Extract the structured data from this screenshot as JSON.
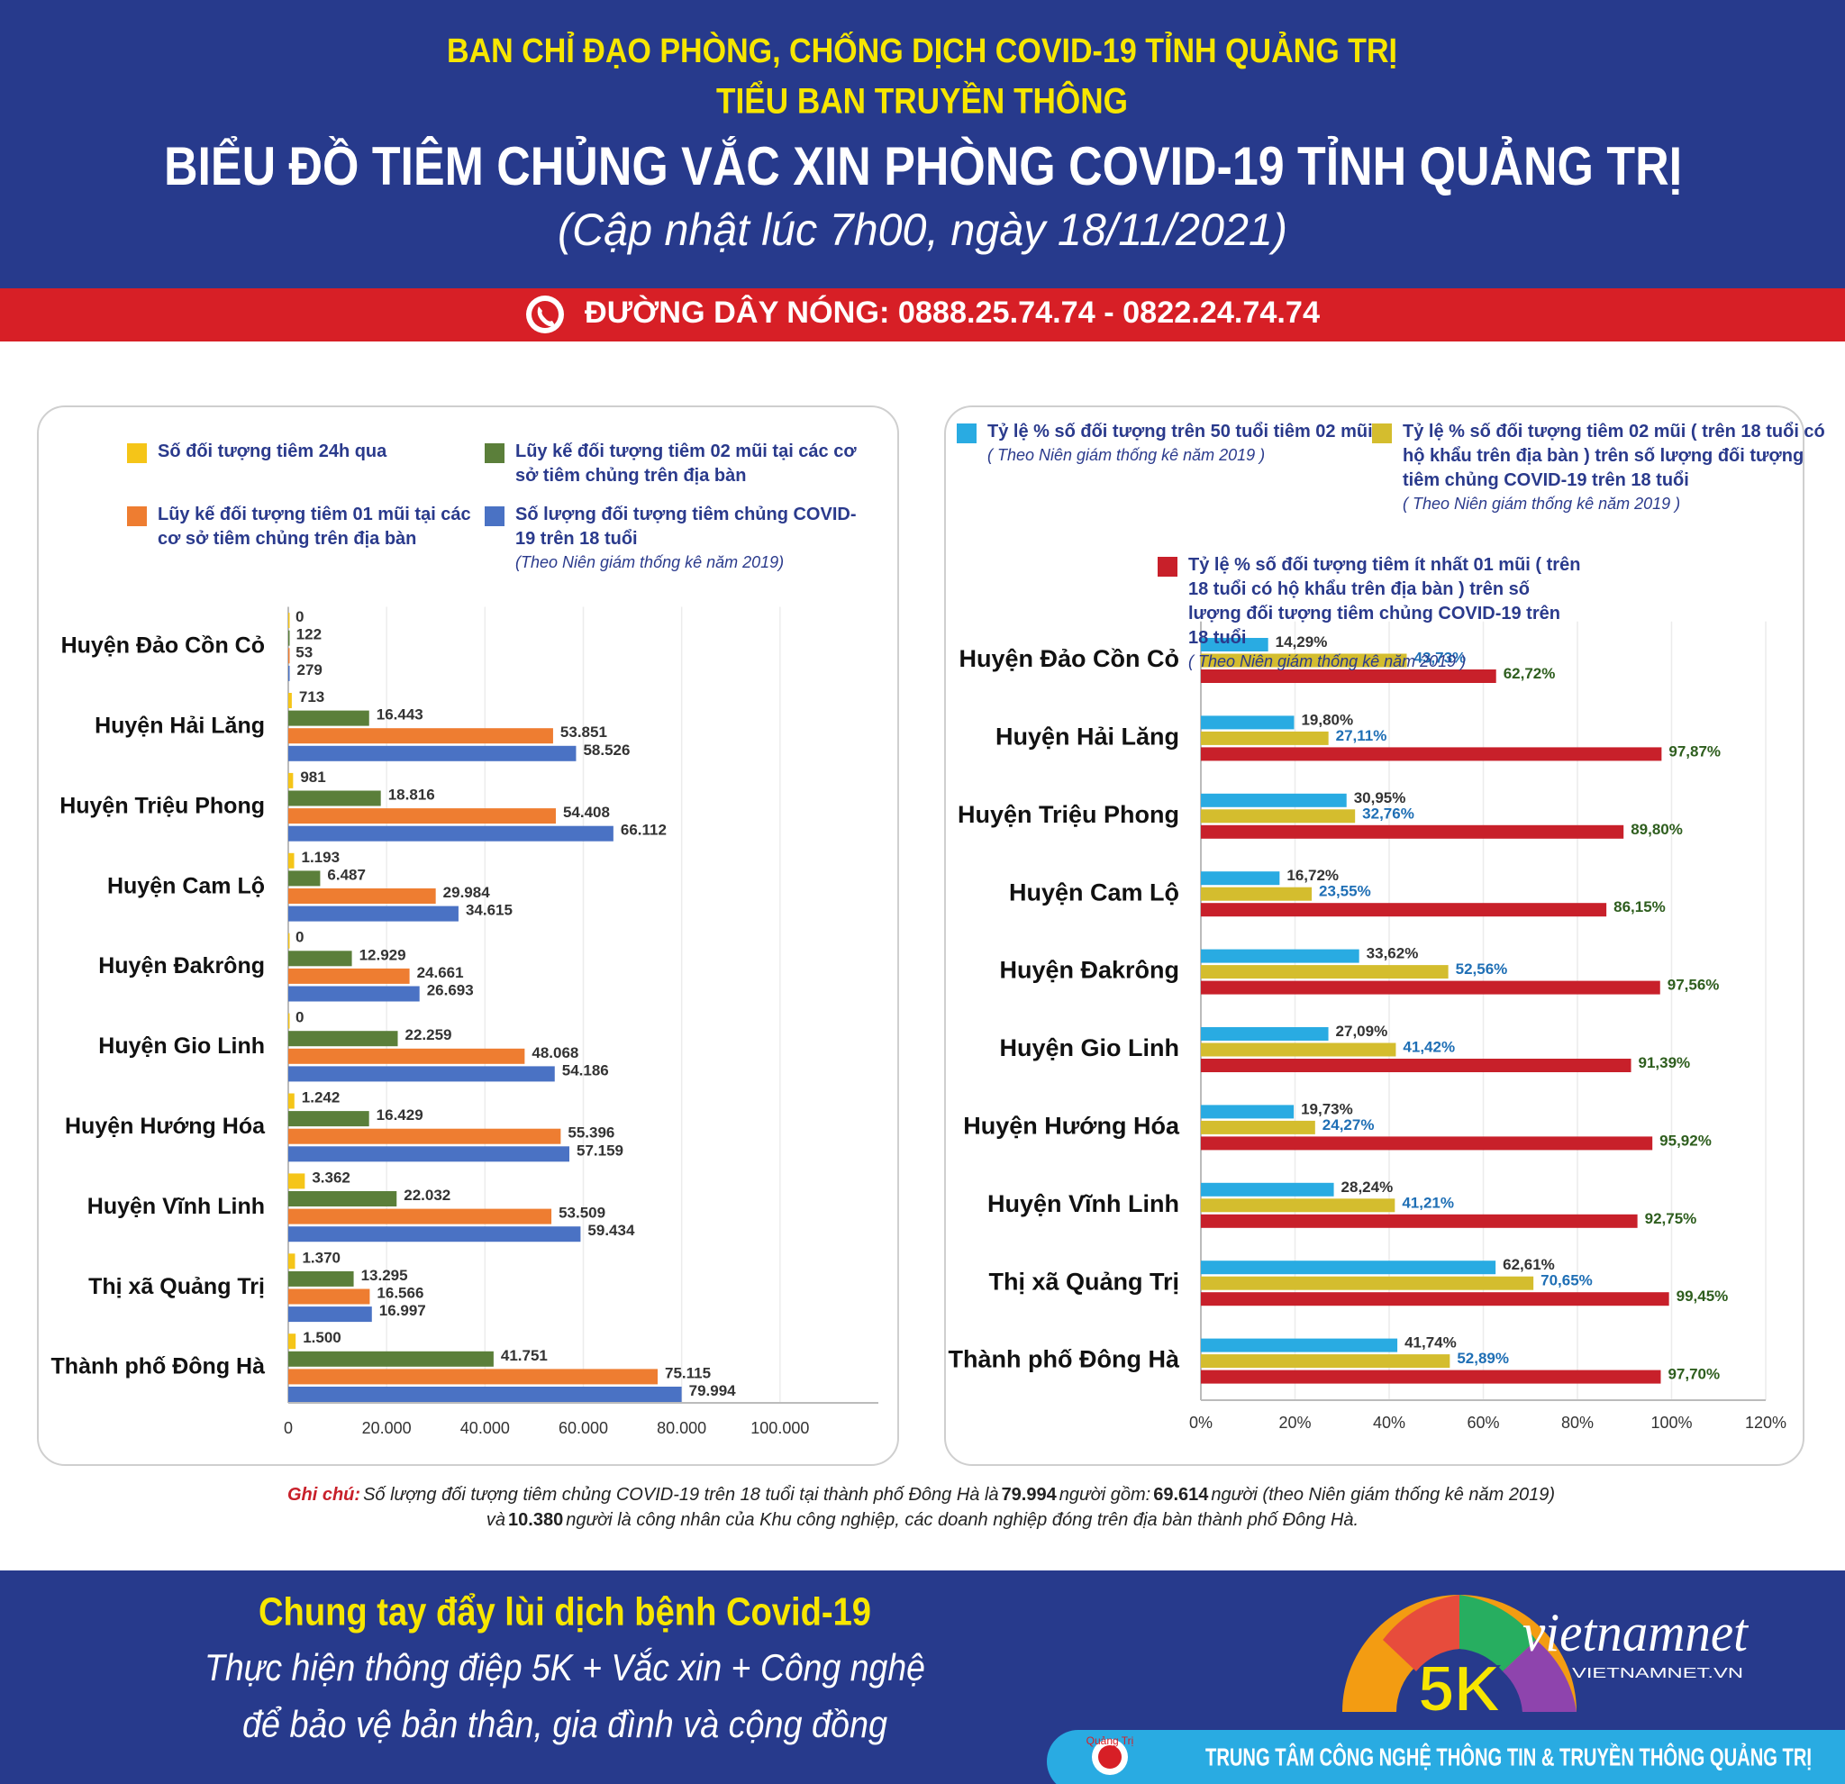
{
  "header": {
    "line1": "BAN CHỈ ĐẠO PHÒNG, CHỐNG DỊCH COVID-19 TỈNH QUẢNG TRỊ",
    "line2": "TIỂU BAN TRUYỀN THÔNG",
    "title": "BIỂU ĐỒ TIÊM CHỦNG VẮC XIN PHÒNG COVID-19 TỈNH QUẢNG TRỊ",
    "subtitle": "(Cập nhật lúc 7h00, ngày 18/11/2021)"
  },
  "hotline": "ĐƯỜNG DÂY NÓNG: 0888.25.74.74 - 0822.24.74.74",
  "chart_data": [
    {
      "type": "bar",
      "orientation": "horizontal",
      "categories": [
        "Huyện Đảo Cồn Cỏ",
        "Huyện Hải Lăng",
        "Huyện Triệu Phong",
        "Huyện Cam Lộ",
        "Huyện Đakrông",
        "Huyện Gio Linh",
        "Huyện Hướng Hóa",
        "Huyện Vĩnh Linh",
        "Thị xã Quảng Trị",
        "Thành phố Đông Hà"
      ],
      "series": [
        {
          "name": "Số đối tượng tiêm 24h qua",
          "color": "#f5c518",
          "values": [
            0,
            713,
            981,
            1193,
            0,
            0,
            1242,
            3362,
            1370,
            1500
          ],
          "value_labels": [
            "0",
            "713",
            "981",
            "1.193",
            "0",
            "0",
            "1.242",
            "3.362",
            "1.370",
            "1.500"
          ]
        },
        {
          "name": "Lũy kế đối tượng tiêm 02 mũi tại các cơ sở tiêm chủng trên địa bàn",
          "color": "#5b7f3a",
          "values": [
            122,
            16443,
            18816,
            6487,
            12929,
            22259,
            16429,
            22032,
            13295,
            41751
          ],
          "value_labels": [
            "122",
            "16.443",
            "18.816",
            "6.487",
            "12.929",
            "22.259",
            "16.429",
            "22.032",
            "13.295",
            "41.751"
          ]
        },
        {
          "name": "Lũy kế đối tượng tiêm 01 mũi tại các cơ sở tiêm chủng trên địa bàn",
          "color": "#ee7d31",
          "values": [
            53,
            53851,
            54408,
            29984,
            24661,
            48068,
            55396,
            53509,
            16566,
            75115
          ],
          "value_labels": [
            "53",
            "53.851",
            "54.408",
            "29.984",
            "24.661",
            "48.068",
            "55.396",
            "53.509",
            "16.566",
            "75.115"
          ]
        },
        {
          "name": "Số lượng đối tượng tiêm chủng COVID-19 trên 18 tuổi",
          "note": "(Theo Niên giám thống kê năm 2019)",
          "color": "#4a72c4",
          "values": [
            279,
            58526,
            66112,
            34615,
            26693,
            54186,
            57159,
            59434,
            16997,
            79994
          ],
          "value_labels": [
            "279",
            "58.526",
            "66.112",
            "34.615",
            "26.693",
            "54.186",
            "57.159",
            "59.434",
            "16.997",
            "79.994"
          ]
        }
      ],
      "xlim": [
        0,
        120000
      ],
      "xticks": [
        0,
        {
          "value": 20000,
          "label": "20.000"
        },
        {
          "value": 40000,
          "label": "40.000"
        },
        {
          "value": 60000,
          "label": "60.000"
        },
        {
          "value": 80000,
          "label": "80.000"
        },
        {
          "value": 100000,
          "label": "100.000"
        }
      ],
      "grid": true
    },
    {
      "type": "bar",
      "orientation": "horizontal",
      "categories": [
        "Huyện Đảo Cồn Cỏ",
        "Huyện Hải Lăng",
        "Huyện Triệu Phong",
        "Huyện Cam Lộ",
        "Huyện Đakrông",
        "Huyện Gio Linh",
        "Huyện Hướng Hóa",
        "Huyện Vĩnh Linh",
        "Thị xã Quảng Trị",
        "Thành phố Đông Hà"
      ],
      "series": [
        {
          "name": "Tỷ lệ % số đối tượng trên 50 tuổi tiêm 02 mũi",
          "note": "( Theo Niên giám thống kê năm 2019 )",
          "color": "#29abe2",
          "label_color": "#333333",
          "values": [
            14.29,
            19.8,
            30.95,
            16.72,
            33.62,
            27.09,
            19.73,
            28.24,
            62.61,
            41.74
          ],
          "value_labels": [
            "14,29%",
            "19,80%",
            "30,95%",
            "16,72%",
            "33,62%",
            "27,09%",
            "19,73%",
            "28,24%",
            "62,61%",
            "41,74%"
          ]
        },
        {
          "name": "Tỷ lệ % số đối tượng tiêm 02 mũi ( trên 18 tuổi có hộ khẩu trên địa bàn ) trên số lượng đối tượng tiêm chủng COVID-19 trên 18 tuổi",
          "note": "( Theo Niên giám thống kê năm 2019 )",
          "color": "#d4bd2e",
          "label_color": "#1f6fb5",
          "values": [
            43.73,
            27.11,
            32.76,
            23.55,
            52.56,
            41.42,
            24.27,
            41.21,
            70.65,
            52.89
          ],
          "value_labels": [
            "43,73%",
            "27,11%",
            "32,76%",
            "23,55%",
            "52,56%",
            "41,42%",
            "24,27%",
            "41,21%",
            "70,65%",
            "52,89%"
          ]
        },
        {
          "name": "Tỷ lệ % số đối tượng tiêm ít nhất 01 mũi ( trên 18 tuổi có hộ khẩu trên địa bàn ) trên số lượng đối tượng tiêm chủng COVID-19 trên 18 tuổi",
          "note": "( Theo Niên giám thống kê năm 2019 )",
          "color": "#c8202a",
          "label_color": "#2e5e1e",
          "values": [
            62.72,
            97.87,
            89.8,
            86.15,
            97.56,
            91.39,
            95.92,
            92.75,
            99.45,
            97.7
          ],
          "value_labels": [
            "62,72%",
            "97,87%",
            "89,80%",
            "86,15%",
            "97,56%",
            "91,39%",
            "95,92%",
            "92,75%",
            "99,45%",
            "97,70%"
          ]
        }
      ],
      "xlim": [
        0,
        120
      ],
      "xticks": [
        {
          "value": 0,
          "label": "0%"
        },
        {
          "value": 20,
          "label": "20%"
        },
        {
          "value": 40,
          "label": "40%"
        },
        {
          "value": 60,
          "label": "60%"
        },
        {
          "value": 80,
          "label": "80%"
        },
        {
          "value": 100,
          "label": "100%"
        },
        {
          "value": 120,
          "label": "120%"
        }
      ],
      "grid": true
    }
  ],
  "note": {
    "label": "Ghi chú:",
    "line1": [
      "Số lượng đối tượng tiêm chủng COVID-19 trên 18 tuổi tại thành phố Đông Hà là",
      "79.994",
      "người gồm:",
      "69.614",
      "người (theo Niên giám thống kê năm 2019)"
    ],
    "line2": [
      "và",
      "10.380",
      "người là công nhân của Khu công nghiệp, các doanh nghiệp đóng trên địa bàn thành phố Đông Hà."
    ]
  },
  "footer": {
    "slogan": "Chung tay đẩy lùi dịch bệnh Covid-19",
    "line2": "Thực hiện thông điệp 5K + Vắc xin + Công nghệ",
    "line3": "để bảo vệ bản thân, gia đình và cộng đồng",
    "badge": "5K",
    "logo": "vietnamnet",
    "logo_sub": "VIETNAMNET.VN",
    "org_logo": "Quảng Trị",
    "org": "TRUNG TÂM CÔNG NGHỆ THÔNG TIN & TRUYỀN THÔNG QUẢNG TRỊ"
  }
}
